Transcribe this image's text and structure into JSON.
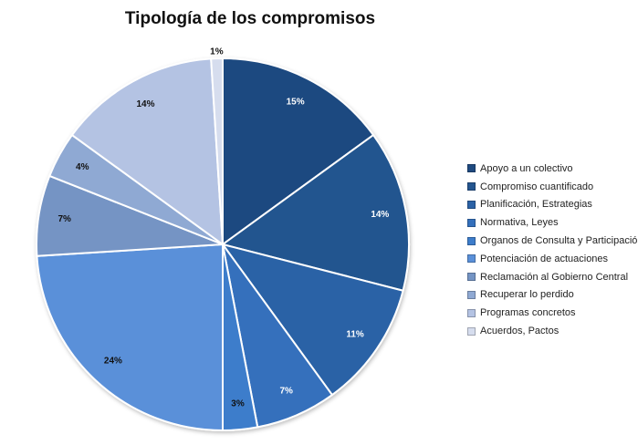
{
  "chart_data": {
    "type": "pie",
    "title": "Tipología de los compromisos",
    "categories": [
      "Apoyo a un colectivo",
      "Compromiso cuantificado",
      "Planificación, Estrategias",
      "Normativa, Leyes",
      "Organos de Consulta y Participación",
      "Potenciación de actuaciones",
      "Reclamación al Gobierno Central",
      "Recuperar lo perdido",
      "Programas concretos",
      "Acuerdos, Pactos"
    ],
    "values": [
      15,
      14,
      11,
      7,
      3,
      24,
      7,
      4,
      14,
      1
    ],
    "value_labels": [
      "15%",
      "14%",
      "11%",
      "7%",
      "3%",
      "24%",
      "7%",
      "4%",
      "14%",
      "1%"
    ],
    "colors": [
      "#1f4a80",
      "#24558f",
      "#2b62a6",
      "#3470bc",
      "#3d7dcb",
      "#5a90d9",
      "#7494c4",
      "#8fa9d3",
      "#b4c3e3",
      "#d6ddee"
    ],
    "label_colors": [
      "#ffffff",
      "#ffffff",
      "#ffffff",
      "#ffffff",
      "#111111",
      "#111111",
      "#111111",
      "#111111",
      "#111111",
      "#111111"
    ],
    "legend_position": "right",
    "start_angle": "top",
    "direction": "clockwise"
  }
}
